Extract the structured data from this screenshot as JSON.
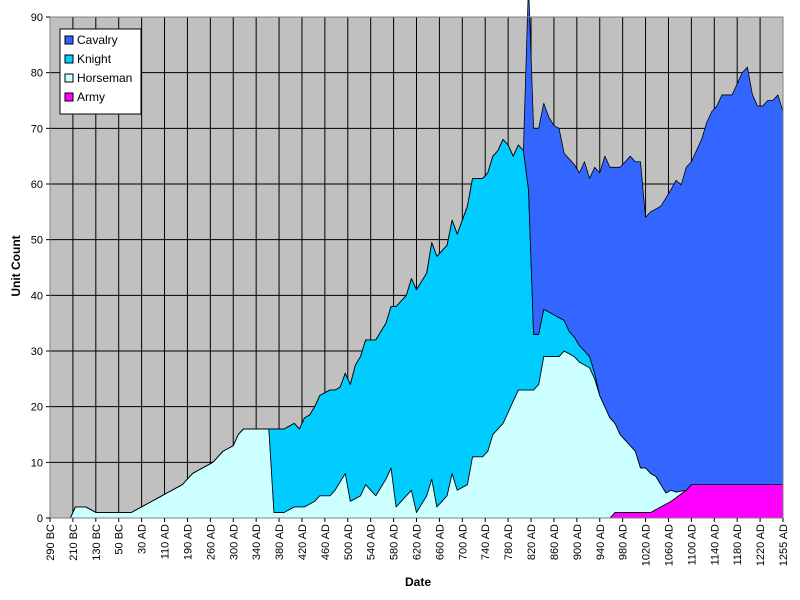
{
  "chart_data": {
    "type": "area",
    "stacked": true,
    "title": "",
    "xlabel": "Date",
    "ylabel": "Unit Count",
    "ylim": [
      0,
      90
    ],
    "yticks": [
      0,
      10,
      20,
      30,
      40,
      50,
      60,
      70,
      80,
      90
    ],
    "grid": true,
    "legend_position": "top-left",
    "x_start_year": -290,
    "x_end_year": 1255,
    "x_tick_labels": [
      "290 BC",
      "210 BC",
      "130 BC",
      "50 BC",
      "30 AD",
      "110 AD",
      "190 AD",
      "260 AD",
      "300 AD",
      "340 AD",
      "380 AD",
      "420 AD",
      "460 AD",
      "500 AD",
      "540 AD",
      "580 AD",
      "620 AD",
      "660 AD",
      "700 AD",
      "740 AD",
      "780 AD",
      "820 AD",
      "860 AD",
      "900 AD",
      "940 AD",
      "980 AD",
      "1020 AD",
      "1060 AD",
      "1100 AD",
      "1140 AD",
      "1180 AD",
      "1220 AD",
      "1255 AD"
    ],
    "series": [
      {
        "name": "Army",
        "color": "#ff00ff",
        "points": [
          [
            0,
            0
          ],
          [
            110,
            0
          ],
          [
            111,
            1
          ],
          [
            118,
            1
          ],
          [
            122,
            3
          ],
          [
            125,
            5
          ],
          [
            126,
            6
          ],
          [
            143,
            6
          ],
          [
            144,
            6
          ]
        ]
      },
      {
        "name": "Horseman",
        "color": "#ccffff",
        "points": [
          [
            0,
            0
          ],
          [
            4,
            0
          ],
          [
            5,
            2
          ],
          [
            7,
            2
          ],
          [
            9,
            1
          ],
          [
            16,
            1
          ],
          [
            18,
            2
          ],
          [
            20,
            3
          ],
          [
            22,
            4
          ],
          [
            24,
            5
          ],
          [
            26,
            6
          ],
          [
            28,
            8
          ],
          [
            30,
            9
          ],
          [
            32,
            10
          ],
          [
            34,
            12
          ],
          [
            36,
            13
          ],
          [
            37,
            15
          ],
          [
            38,
            16
          ],
          [
            43,
            16
          ],
          [
            44,
            1
          ],
          [
            46,
            1
          ],
          [
            48,
            2
          ],
          [
            50,
            2
          ],
          [
            52,
            3
          ],
          [
            53,
            4
          ],
          [
            55,
            4
          ],
          [
            56,
            5
          ],
          [
            58,
            8
          ],
          [
            59,
            3
          ],
          [
            61,
            4
          ],
          [
            62,
            6
          ],
          [
            64,
            4
          ],
          [
            66,
            7
          ],
          [
            67,
            9
          ],
          [
            68,
            2
          ],
          [
            70,
            4
          ],
          [
            71,
            5
          ],
          [
            72,
            1
          ],
          [
            74,
            4
          ],
          [
            75,
            7
          ],
          [
            76,
            2
          ],
          [
            78,
            4
          ],
          [
            79,
            8
          ],
          [
            80,
            5
          ],
          [
            82,
            6
          ],
          [
            83,
            11
          ],
          [
            85,
            11
          ],
          [
            86,
            12
          ],
          [
            87,
            15
          ],
          [
            89,
            17
          ],
          [
            91,
            21
          ],
          [
            92,
            23
          ],
          [
            95,
            23
          ],
          [
            96,
            24
          ],
          [
            97,
            29
          ],
          [
            100,
            29
          ],
          [
            101,
            30
          ],
          [
            103,
            29
          ],
          [
            104,
            28
          ],
          [
            106,
            27
          ],
          [
            107,
            25
          ],
          [
            108,
            22
          ],
          [
            109,
            20
          ],
          [
            110,
            18
          ],
          [
            111,
            16
          ],
          [
            112,
            14
          ],
          [
            114,
            12
          ],
          [
            115,
            11
          ],
          [
            116,
            8
          ],
          [
            117,
            8
          ],
          [
            119,
            6
          ],
          [
            120,
            4
          ],
          [
            121,
            2
          ],
          [
            122,
            2
          ],
          [
            123,
            1
          ],
          [
            125,
            0
          ],
          [
            144,
            0
          ]
        ]
      },
      {
        "name": "Knight",
        "color": "#00ccff",
        "points": [
          [
            0,
            0
          ],
          [
            43,
            0
          ],
          [
            44,
            15
          ],
          [
            45,
            15
          ],
          [
            47,
            15
          ],
          [
            48,
            15
          ],
          [
            49,
            14
          ],
          [
            50,
            16
          ],
          [
            51,
            16
          ],
          [
            53,
            18
          ],
          [
            55,
            19
          ],
          [
            57,
            17
          ],
          [
            58,
            18
          ],
          [
            60,
            24
          ],
          [
            62,
            26
          ],
          [
            64,
            28
          ],
          [
            66,
            28
          ],
          [
            67,
            29
          ],
          [
            68,
            36
          ],
          [
            70,
            36
          ],
          [
            72,
            40
          ],
          [
            74,
            40
          ],
          [
            76,
            45
          ],
          [
            78,
            45
          ],
          [
            80,
            46
          ],
          [
            82,
            50
          ],
          [
            84,
            50
          ],
          [
            86,
            50
          ],
          [
            88,
            50
          ],
          [
            89,
            51
          ],
          [
            90,
            48
          ],
          [
            91,
            44
          ],
          [
            92,
            44
          ],
          [
            93,
            43
          ],
          [
            94,
            36
          ],
          [
            95,
            10
          ],
          [
            96,
            9
          ],
          [
            98,
            8
          ],
          [
            100,
            7
          ],
          [
            102,
            4
          ],
          [
            104,
            3
          ],
          [
            106,
            2
          ],
          [
            108,
            0
          ],
          [
            144,
            0
          ]
        ]
      },
      {
        "name": "Cavalry",
        "color": "#3366ff",
        "points": [
          [
            0,
            0
          ],
          [
            93,
            0
          ],
          [
            94,
            37
          ],
          [
            97,
            37
          ],
          [
            98,
            35
          ],
          [
            99,
            34
          ],
          [
            100,
            34
          ],
          [
            101,
            30
          ],
          [
            102,
            31
          ],
          [
            103,
            31
          ],
          [
            104,
            31
          ],
          [
            105,
            34
          ],
          [
            106,
            32
          ],
          [
            107,
            37
          ],
          [
            108,
            40
          ],
          [
            109,
            45
          ],
          [
            110,
            45
          ],
          [
            111,
            46
          ],
          [
            112,
            48
          ],
          [
            113,
            50
          ],
          [
            114,
            52
          ],
          [
            115,
            52
          ],
          [
            116,
            55
          ],
          [
            117,
            45
          ],
          [
            118,
            47
          ],
          [
            119,
            48
          ],
          [
            120,
            50
          ],
          [
            121,
            53
          ],
          [
            122,
            54
          ],
          [
            123,
            56
          ],
          [
            124,
            55
          ],
          [
            125,
            58
          ],
          [
            126,
            58
          ],
          [
            127,
            60
          ],
          [
            128,
            62
          ],
          [
            129,
            65
          ],
          [
            130,
            67
          ],
          [
            131,
            68
          ],
          [
            132,
            70
          ],
          [
            133,
            70
          ],
          [
            134,
            70
          ],
          [
            135,
            72
          ],
          [
            136,
            74
          ],
          [
            137,
            75
          ],
          [
            138,
            70
          ],
          [
            139,
            68
          ],
          [
            140,
            68
          ],
          [
            141,
            69
          ],
          [
            142,
            69
          ],
          [
            143,
            70
          ],
          [
            144,
            67
          ]
        ]
      }
    ]
  },
  "legend": {
    "items": [
      {
        "label": "Cavalry",
        "color": "#3366ff"
      },
      {
        "label": "Knight",
        "color": "#00ccff"
      },
      {
        "label": "Horseman",
        "color": "#ccffff"
      },
      {
        "label": "Army",
        "color": "#ff00ff"
      }
    ]
  }
}
